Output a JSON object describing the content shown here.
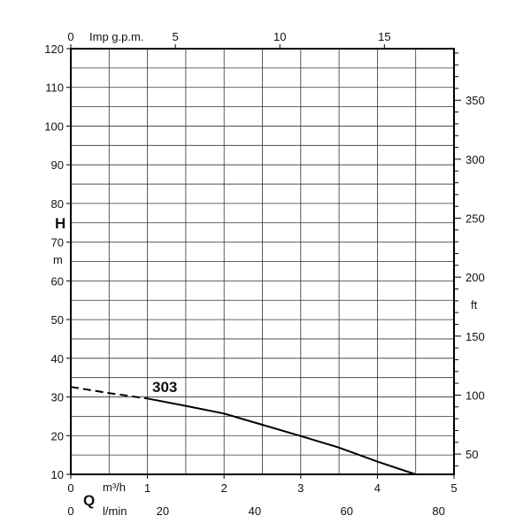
{
  "chart_data": {
    "type": "line",
    "x_unit": "m³/h",
    "xlim": [
      0,
      5
    ],
    "ylim": [
      10,
      120
    ],
    "x_ticks": [
      "0",
      "1",
      "2",
      "3",
      "4",
      "5"
    ],
    "y_ticks": [
      "10",
      "20",
      "30",
      "40",
      "50",
      "60",
      "70",
      "80",
      "90",
      "100",
      "110",
      "120"
    ],
    "y_label": "H",
    "y_unit": "m",
    "q_label": "Q",
    "top_axis": {
      "unit": "Imp g.p.m.",
      "ticks": [
        "0",
        "5",
        "10",
        "15"
      ],
      "values": [
        0,
        5,
        10,
        15
      ],
      "per_x_unit": 3.666
    },
    "lmin_axis": {
      "unit": "l/min",
      "ticks": [
        "0",
        "20",
        "40",
        "60",
        "80"
      ],
      "values": [
        0,
        20,
        40,
        60,
        80
      ],
      "per_x_unit": 16.667
    },
    "ft_axis": {
      "unit": "ft",
      "ticks": [
        "50",
        "100",
        "150",
        "200",
        "250",
        "300",
        "350"
      ],
      "values": [
        50,
        100,
        150,
        200,
        250,
        300,
        350
      ],
      "per_metre": 3.2808
    },
    "series": [
      {
        "name": "303",
        "dashed_points": [
          [
            0,
            32.6
          ],
          [
            0.5,
            31.0
          ],
          [
            1.0,
            29.6
          ]
        ],
        "points": [
          [
            1.0,
            29.6
          ],
          [
            1.5,
            27.7
          ],
          [
            2.0,
            25.7
          ],
          [
            2.5,
            22.8
          ],
          [
            3.0,
            19.9
          ],
          [
            3.5,
            16.9
          ],
          [
            4.0,
            13.3
          ],
          [
            4.5,
            10.0
          ]
        ]
      }
    ],
    "grid": true,
    "curve_color": "#000000",
    "grid_color": "#333333"
  }
}
